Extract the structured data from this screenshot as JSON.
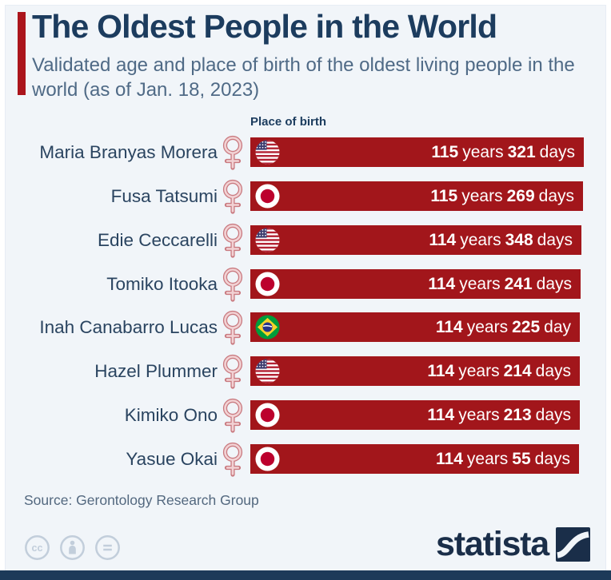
{
  "header": {
    "title": "The Oldest People in the World",
    "subtitle": "Validated age and place of birth of the oldest living people in the world (as of Jan. 18, 2023)",
    "accent_color": "#ab151c"
  },
  "column_header": "Place of birth",
  "rows": [
    {
      "name": "Maria Branyas Morera",
      "gender": "female",
      "flag": "United States",
      "years": "115",
      "years_unit": "years",
      "days": "321",
      "days_unit": "days"
    },
    {
      "name": "Fusa Tatsumi",
      "gender": "female",
      "flag": "Japan",
      "years": "115",
      "years_unit": "years",
      "days": "269",
      "days_unit": "days"
    },
    {
      "name": "Edie Ceccarelli",
      "gender": "female",
      "flag": "United States",
      "years": "114",
      "years_unit": "years",
      "days": "348",
      "days_unit": "days"
    },
    {
      "name": "Tomiko Itooka",
      "gender": "female",
      "flag": "Japan",
      "years": "114",
      "years_unit": "years",
      "days": "241",
      "days_unit": "days"
    },
    {
      "name": "Inah Canabarro Lucas",
      "gender": "female",
      "flag": "Brazil",
      "years": "114",
      "years_unit": "years",
      "days": "225",
      "days_unit": "day"
    },
    {
      "name": "Hazel Plummer",
      "gender": "female",
      "flag": "United States",
      "years": "114",
      "years_unit": "years",
      "days": "214",
      "days_unit": "days"
    },
    {
      "name": "Kimiko Ono",
      "gender": "female",
      "flag": "Japan",
      "years": "114",
      "years_unit": "years",
      "days": "213",
      "days_unit": "days"
    },
    {
      "name": "Yasue Okai",
      "gender": "female",
      "flag": "Japan",
      "years": "114",
      "years_unit": "years",
      "days": "55",
      "days_unit": "days"
    }
  ],
  "footer": {
    "source": "Source: Gerontology Research Group",
    "brand": "statista"
  },
  "colors": {
    "bar_red": "#a2161b",
    "background": "#f1f5f9",
    "title_navy": "#1c3c5e",
    "subtitle_gray_blue": "#4f6a86",
    "statista_navy": "#1a2e49",
    "venus_pink": "#c97a80"
  },
  "chart_data": {
    "type": "bar",
    "orientation": "horizontal",
    "title": "The Oldest People in the World",
    "subtitle": "Validated age and place of birth of the oldest living people in the world (as of Jan. 18, 2023)",
    "categories": [
      "Maria Branyas Morera",
      "Fusa Tatsumi",
      "Edie Ceccarelli",
      "Tomiko Itooka",
      "Inah Canabarro Lucas",
      "Hazel Plummer",
      "Kimiko Ono",
      "Yasue Okai"
    ],
    "series": [
      {
        "name": "Validated age",
        "values": [
          {
            "label": "115 years 321 days",
            "years": 115,
            "days": 321,
            "place_of_birth": "United States"
          },
          {
            "label": "115 years 269 days",
            "years": 115,
            "days": 269,
            "place_of_birth": "Japan"
          },
          {
            "label": "114 years 348 days",
            "years": 114,
            "days": 348,
            "place_of_birth": "United States"
          },
          {
            "label": "114 years 241 days",
            "years": 114,
            "days": 241,
            "place_of_birth": "Japan"
          },
          {
            "label": "114 years 225 day",
            "years": 114,
            "days": 225,
            "place_of_birth": "Brazil"
          },
          {
            "label": "114 years 214 days",
            "years": 114,
            "days": 214,
            "place_of_birth": "United States"
          },
          {
            "label": "114 years 213 days",
            "years": 114,
            "days": 213,
            "place_of_birth": "Japan"
          },
          {
            "label": "114 years 55 days",
            "years": 114,
            "days": 55,
            "place_of_birth": "Japan"
          }
        ]
      }
    ],
    "bar_color": "#a2161b",
    "legend": "none",
    "grid": false,
    "source": "Source: Gerontology Research Group"
  }
}
